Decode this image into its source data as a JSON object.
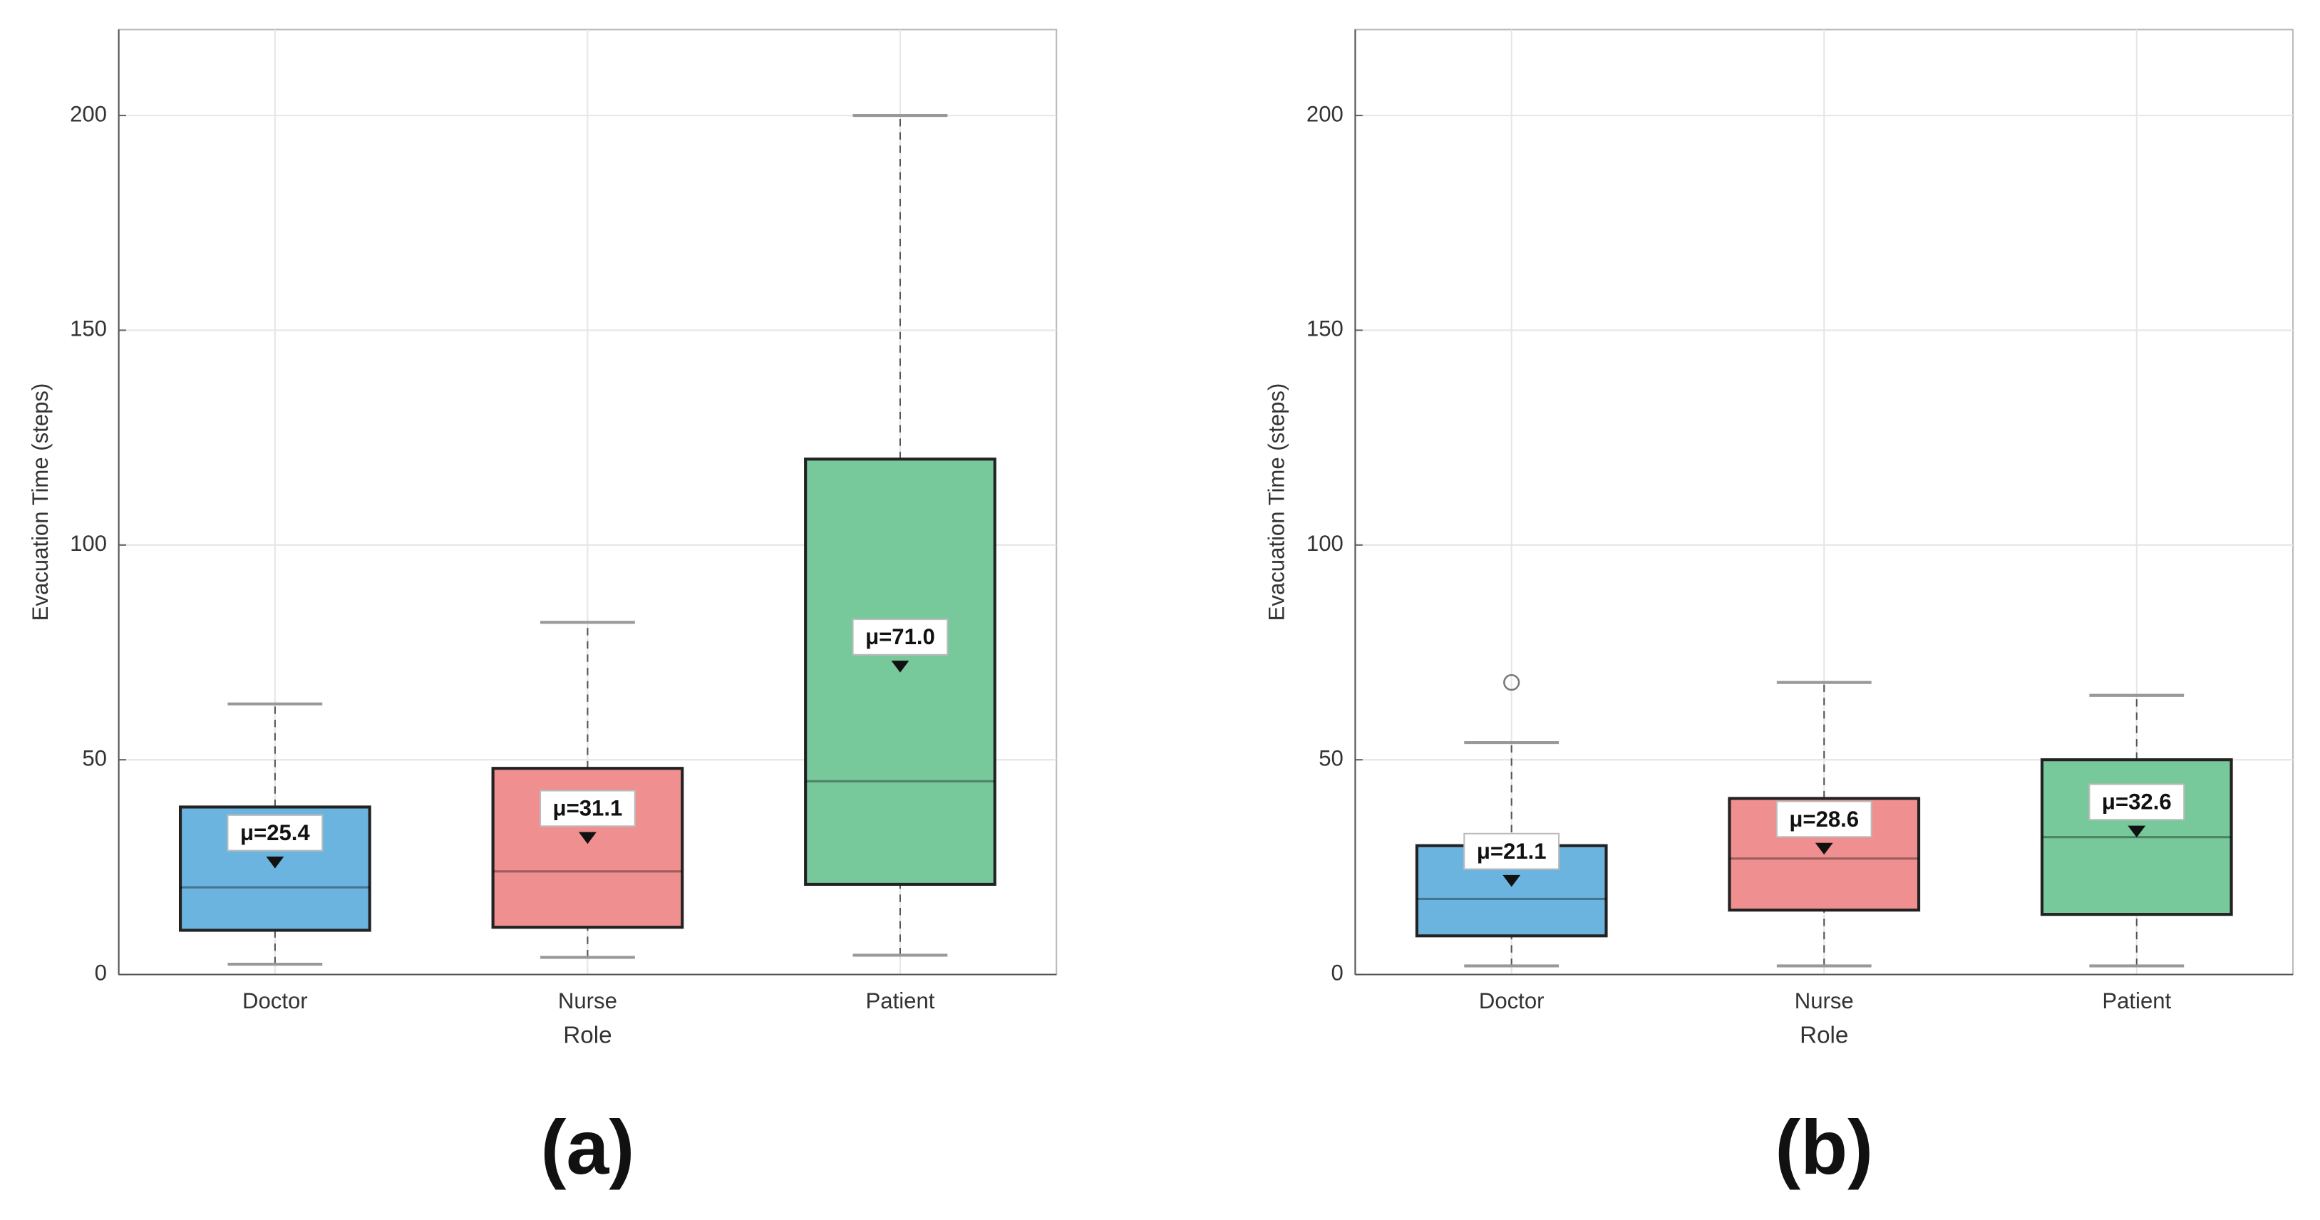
{
  "chart_data": [
    {
      "type": "box",
      "panel_label": "(a)",
      "xlabel": "Role",
      "ylabel": "Evacuation Time (steps)",
      "categories": [
        "Doctor",
        "Nurse",
        "Patient"
      ],
      "colors": [
        "#6cb4e0",
        "#ef8f8f",
        "#77c89b"
      ],
      "min": [
        2.4,
        4,
        4.5
      ],
      "q1": [
        10.3,
        11,
        21
      ],
      "median": [
        20.3,
        24,
        45
      ],
      "q3": [
        39,
        48,
        120
      ],
      "max": [
        63,
        82,
        200
      ],
      "outliers": [
        [],
        [],
        []
      ],
      "values": [
        25.4,
        31.1,
        71
      ],
      "value_labels": [
        "μ=25.4",
        "μ=31.1",
        "μ=71.0"
      ],
      "ylim": [
        0,
        220
      ],
      "yticks": [
        0,
        50,
        100,
        150,
        200
      ],
      "grid": true
    },
    {
      "type": "box",
      "panel_label": "(b)",
      "xlabel": "Role",
      "ylabel": "Evacuation Time (steps)",
      "categories": [
        "Doctor",
        "Nurse",
        "Patient"
      ],
      "colors": [
        "#6cb4e0",
        "#ef8f8f",
        "#77c89b"
      ],
      "min": [
        2,
        2,
        2
      ],
      "q1": [
        9,
        15,
        14
      ],
      "median": [
        17.6,
        27,
        32
      ],
      "q3": [
        30,
        41,
        50
      ],
      "max": [
        54,
        68,
        65
      ],
      "outliers": [
        [
          68
        ],
        [],
        []
      ],
      "values": [
        21.1,
        28.6,
        32.6
      ],
      "value_labels": [
        "μ=21.1",
        "μ=28.6",
        "μ=32.6"
      ],
      "ylim": [
        0,
        220
      ],
      "yticks": [
        0,
        50,
        100,
        150,
        200
      ],
      "grid": true
    }
  ]
}
